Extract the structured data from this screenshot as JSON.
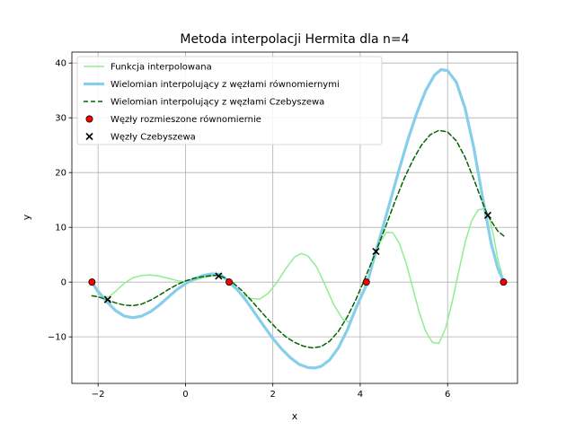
{
  "chart_data": {
    "type": "line",
    "title": "Metoda interpolacji Hermita dla n=4",
    "xlabel": "x",
    "ylabel": "y",
    "xlim": [
      -2.6,
      7.6
    ],
    "ylim": [
      -18.5,
      42
    ],
    "xticks": [
      -2,
      0,
      2,
      4,
      6
    ],
    "yticks": [
      -10,
      0,
      10,
      20,
      30,
      40
    ],
    "grid": true,
    "legend_position": "upper-left",
    "series": [
      {
        "name": "Funkcja interpolowana",
        "kind": "line",
        "color": "#90ee90",
        "points": [
          [
            -2.14,
            -0.2
          ],
          [
            -1.98,
            -1.6
          ],
          [
            -1.88,
            -2.6
          ],
          [
            -1.75,
            -2.7
          ],
          [
            -1.6,
            -1.7
          ],
          [
            -1.4,
            -0.2
          ],
          [
            -1.2,
            0.8
          ],
          [
            -1.0,
            1.2
          ],
          [
            -0.8,
            1.3
          ],
          [
            -0.6,
            1.1
          ],
          [
            -0.4,
            0.7
          ],
          [
            -0.2,
            0.3
          ],
          [
            0.0,
            0.0
          ],
          [
            0.2,
            0.3
          ],
          [
            0.4,
            0.8
          ],
          [
            0.6,
            1.1
          ],
          [
            0.8,
            1.3
          ],
          [
            1.0,
            0.0
          ],
          [
            1.15,
            -1.2
          ],
          [
            1.3,
            -2.3
          ],
          [
            1.5,
            -3.0
          ],
          [
            1.7,
            -3.1
          ],
          [
            1.9,
            -2.0
          ],
          [
            2.1,
            0.0
          ],
          [
            2.3,
            2.5
          ],
          [
            2.5,
            4.6
          ],
          [
            2.65,
            5.2
          ],
          [
            2.8,
            4.8
          ],
          [
            3.0,
            2.8
          ],
          [
            3.2,
            -0.6
          ],
          [
            3.4,
            -4.2
          ],
          [
            3.6,
            -6.8
          ],
          [
            3.75,
            -7.3
          ],
          [
            3.9,
            -5.0
          ],
          [
            4.05,
            -2.2
          ],
          [
            4.17,
            0.0
          ],
          [
            4.3,
            3.4
          ],
          [
            4.45,
            7.2
          ],
          [
            4.6,
            9.1
          ],
          [
            4.75,
            9.0
          ],
          [
            4.9,
            7.0
          ],
          [
            5.05,
            3.5
          ],
          [
            5.2,
            -1.0
          ],
          [
            5.35,
            -5.5
          ],
          [
            5.5,
            -9.0
          ],
          [
            5.65,
            -11.0
          ],
          [
            5.8,
            -11.2
          ],
          [
            5.95,
            -8.5
          ],
          [
            6.1,
            -3.8
          ],
          [
            6.25,
            1.8
          ],
          [
            6.4,
            7.2
          ],
          [
            6.55,
            11.2
          ],
          [
            6.7,
            13.2
          ],
          [
            6.85,
            13.4
          ],
          [
            6.95,
            12.0
          ],
          [
            7.05,
            8.4
          ],
          [
            7.15,
            4.2
          ],
          [
            7.29,
            0.0
          ]
        ]
      },
      {
        "name": "Wielomian interpolujący z węzłami równomiernymi",
        "kind": "line",
        "color": "#87ceeb",
        "points": [
          [
            -2.14,
            0.0
          ],
          [
            -2.0,
            -1.8
          ],
          [
            -1.8,
            -3.6
          ],
          [
            -1.6,
            -5.2
          ],
          [
            -1.4,
            -6.2
          ],
          [
            -1.2,
            -6.5
          ],
          [
            -1.0,
            -6.2
          ],
          [
            -0.8,
            -5.4
          ],
          [
            -0.6,
            -4.2
          ],
          [
            -0.4,
            -2.8
          ],
          [
            -0.2,
            -1.4
          ],
          [
            0.0,
            -0.3
          ],
          [
            0.2,
            0.6
          ],
          [
            0.4,
            1.2
          ],
          [
            0.6,
            1.5
          ],
          [
            0.8,
            1.4
          ],
          [
            1.0,
            0.0
          ],
          [
            1.2,
            -1.5
          ],
          [
            1.4,
            -3.5
          ],
          [
            1.6,
            -5.8
          ],
          [
            1.8,
            -8.1
          ],
          [
            2.0,
            -10.3
          ],
          [
            2.2,
            -12.2
          ],
          [
            2.4,
            -13.8
          ],
          [
            2.6,
            -15.0
          ],
          [
            2.8,
            -15.6
          ],
          [
            2.95,
            -15.7
          ],
          [
            3.1,
            -15.4
          ],
          [
            3.3,
            -14.2
          ],
          [
            3.5,
            -12.0
          ],
          [
            3.7,
            -8.8
          ],
          [
            3.9,
            -4.8
          ],
          [
            4.17,
            0.0
          ],
          [
            4.3,
            4.0
          ],
          [
            4.5,
            9.5
          ],
          [
            4.7,
            15.2
          ],
          [
            4.9,
            20.8
          ],
          [
            5.1,
            26.2
          ],
          [
            5.3,
            31.0
          ],
          [
            5.5,
            35.0
          ],
          [
            5.7,
            37.8
          ],
          [
            5.85,
            38.8
          ],
          [
            6.0,
            38.6
          ],
          [
            6.2,
            36.5
          ],
          [
            6.4,
            31.8
          ],
          [
            6.6,
            24.5
          ],
          [
            6.8,
            15.5
          ],
          [
            7.0,
            7.0
          ],
          [
            7.15,
            2.5
          ],
          [
            7.29,
            0.0
          ]
        ]
      },
      {
        "name": "Wielomian interpolujący z węzłami Czebyszewa",
        "kind": "line",
        "color": "#006400",
        "points": [
          [
            -2.14,
            -2.5
          ],
          [
            -2.0,
            -2.7
          ],
          [
            -1.8,
            -3.2
          ],
          [
            -1.6,
            -3.8
          ],
          [
            -1.4,
            -4.2
          ],
          [
            -1.2,
            -4.3
          ],
          [
            -1.0,
            -4.0
          ],
          [
            -0.8,
            -3.3
          ],
          [
            -0.6,
            -2.4
          ],
          [
            -0.4,
            -1.4
          ],
          [
            -0.2,
            -0.5
          ],
          [
            0.0,
            0.2
          ],
          [
            0.2,
            0.7
          ],
          [
            0.4,
            1.0
          ],
          [
            0.6,
            1.2
          ],
          [
            0.75,
            1.2
          ],
          [
            0.9,
            0.8
          ],
          [
            1.1,
            -0.2
          ],
          [
            1.3,
            -1.6
          ],
          [
            1.5,
            -3.3
          ],
          [
            1.7,
            -5.1
          ],
          [
            1.9,
            -6.9
          ],
          [
            2.1,
            -8.6
          ],
          [
            2.3,
            -10.0
          ],
          [
            2.5,
            -11.0
          ],
          [
            2.7,
            -11.7
          ],
          [
            2.9,
            -12.0
          ],
          [
            3.1,
            -11.8
          ],
          [
            3.3,
            -10.8
          ],
          [
            3.5,
            -9.0
          ],
          [
            3.7,
            -6.4
          ],
          [
            3.9,
            -3.2
          ],
          [
            4.1,
            0.5
          ],
          [
            4.36,
            5.6
          ],
          [
            4.6,
            10.5
          ],
          [
            4.8,
            14.8
          ],
          [
            5.0,
            18.8
          ],
          [
            5.2,
            22.2
          ],
          [
            5.4,
            25.0
          ],
          [
            5.6,
            26.9
          ],
          [
            5.8,
            27.7
          ],
          [
            6.0,
            27.4
          ],
          [
            6.2,
            25.8
          ],
          [
            6.4,
            22.8
          ],
          [
            6.6,
            18.8
          ],
          [
            6.8,
            14.5
          ],
          [
            6.92,
            12.2
          ],
          [
            7.05,
            10.5
          ],
          [
            7.15,
            9.3
          ],
          [
            7.29,
            8.4
          ]
        ]
      },
      {
        "name": "Węzły rozmieszone równomiernie",
        "kind": "scatter",
        "marker": "circle",
        "color": "#ff0000",
        "points": [
          [
            -2.14,
            0.0
          ],
          [
            1.0,
            0.0
          ],
          [
            4.14,
            0.0
          ],
          [
            7.28,
            0.0
          ]
        ]
      },
      {
        "name": "Węzły Czebyszewa",
        "kind": "scatter",
        "marker": "x",
        "color": "#000000",
        "points": [
          [
            -1.78,
            -3.2
          ],
          [
            0.76,
            1.1
          ],
          [
            4.36,
            5.6
          ],
          [
            6.92,
            12.2
          ]
        ]
      }
    ]
  }
}
